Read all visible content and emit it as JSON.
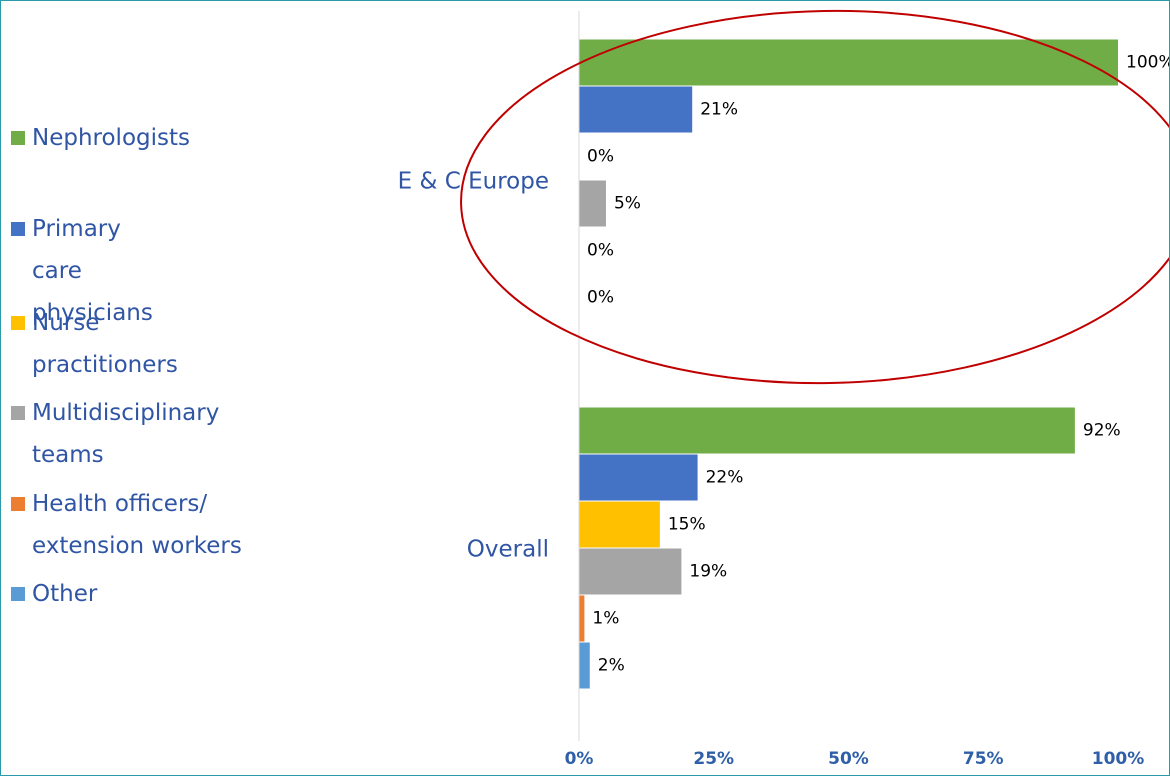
{
  "chart_data": {
    "type": "bar",
    "orientation": "horizontal",
    "categories": [
      "E & C Europe",
      "Overall"
    ],
    "series": [
      {
        "name": "Nephrologists",
        "color": "#70ad47",
        "values": [
          100,
          92
        ],
        "value_labels": [
          "100%",
          "92%"
        ]
      },
      {
        "name": "Primary care physicians",
        "color": "#4472c4",
        "values": [
          21,
          22
        ],
        "value_labels": [
          "21%",
          "22%"
        ]
      },
      {
        "name": "Nurse practitioners",
        "color": "#ffc000",
        "values": [
          0,
          15
        ],
        "value_labels": [
          "0%",
          "15%"
        ]
      },
      {
        "name": "Multidisciplinary teams",
        "color": "#a5a5a5",
        "values": [
          5,
          19
        ],
        "value_labels": [
          "5%",
          "19%"
        ]
      },
      {
        "name": "Health officers/ extension workers",
        "color": "#ed7d31",
        "values": [
          0,
          1
        ],
        "value_labels": [
          "0%",
          "1%"
        ]
      },
      {
        "name": "Other",
        "color": "#5b9bd5",
        "values": [
          0,
          2
        ],
        "value_labels": [
          "0%",
          "2%"
        ]
      }
    ],
    "xlim": [
      0,
      100
    ],
    "xticks": [
      {
        "value": 0,
        "label": "0%"
      },
      {
        "value": 25,
        "label": "25%"
      },
      {
        "value": 50,
        "label": "50%"
      },
      {
        "value": 75,
        "label": "75%"
      },
      {
        "value": 100,
        "label": "100%"
      }
    ],
    "grid": false,
    "legend": "left"
  }
}
